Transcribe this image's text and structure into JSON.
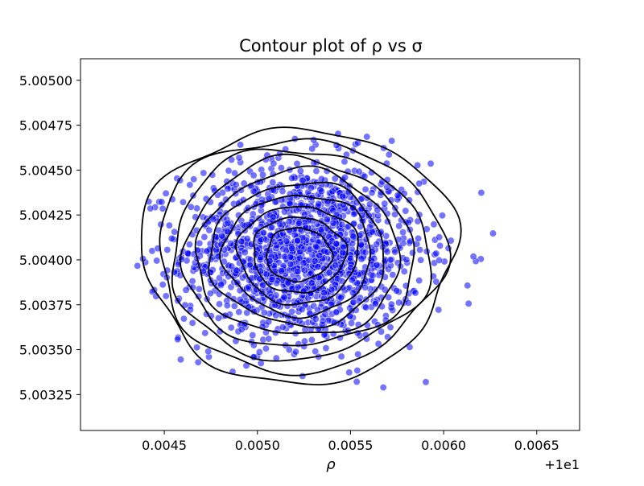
{
  "chart_data": {
    "type": "scatter",
    "title": "Contour plot of ρ vs σ",
    "xlabel": "ρ",
    "ylabel": "",
    "x_offset_label": "+1e1",
    "xlim": [
      10.00405,
      10.00673
    ],
    "ylim": [
      5.00305,
      5.00512
    ],
    "x_ticks": [
      10.0045,
      10.005,
      10.0055,
      10.006,
      10.0065
    ],
    "x_tick_labels": [
      "0.0045",
      "0.0050",
      "0.0055",
      "0.0060",
      "0.0065"
    ],
    "y_ticks": [
      5.00325,
      5.0035,
      5.00375,
      5.004,
      5.00425,
      5.0045,
      5.00475,
      5.005
    ],
    "y_tick_labels": [
      "5.00325",
      "5.00350",
      "5.00375",
      "5.00400",
      "5.00425",
      "5.00450",
      "5.00475",
      "5.00500"
    ],
    "grid": false,
    "points_color": "#0000ff",
    "contour_color": "#000000",
    "point_cloud": {
      "n_points": 1600,
      "center": [
        10.00524,
        5.00404
      ],
      "std": [
        0.00032,
        0.00025
      ],
      "x_range_observed": [
        10.00433,
        10.00646
      ],
      "y_range_observed": [
        5.00326,
        5.00489
      ]
    },
    "contours": {
      "count": 10,
      "center": [
        10.00522,
        5.00403
      ],
      "outer_x_extent": [
        10.0045,
        10.00618
      ],
      "outer_y_extent": [
        5.00335,
        5.00477
      ]
    }
  }
}
